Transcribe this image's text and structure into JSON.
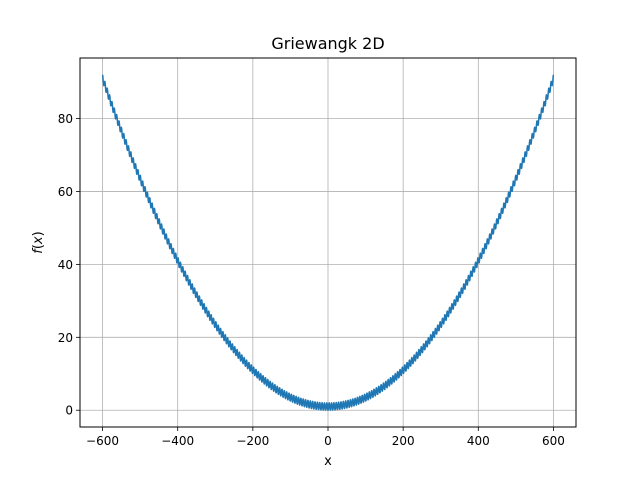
{
  "chart_data": {
    "type": "line",
    "title": "Griewangk 2D",
    "xlabel": "x",
    "ylabel": "f(x)",
    "xlim": [
      -660,
      660
    ],
    "ylim": [
      -4.6,
      96.6
    ],
    "grid": true,
    "x_ticks": [
      -600,
      -400,
      -200,
      0,
      200,
      400,
      600
    ],
    "y_ticks": [
      0,
      20,
      40,
      60,
      80
    ],
    "x_tick_labels": [
      "−600",
      "−400",
      "−200",
      "0",
      "200",
      "400",
      "600"
    ],
    "y_tick_labels": [
      "0",
      "20",
      "40",
      "60",
      "80"
    ],
    "series": [
      {
        "color": "#1f77b4",
        "function": "1 + x^2/4000 - cos(x)",
        "x": [
          -600,
          -500,
          -400,
          -300,
          -200,
          -100,
          0,
          100,
          200,
          300,
          400,
          500,
          600
        ],
        "y": [
          91.0,
          63.5,
          41.0,
          23.5,
          11.0,
          3.5,
          0.0,
          3.5,
          11.0,
          23.5,
          41.0,
          63.5,
          91.0
        ]
      }
    ]
  }
}
